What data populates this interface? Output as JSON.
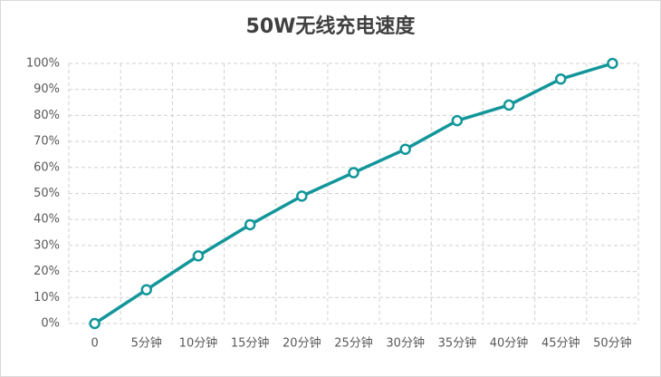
{
  "chart_data": {
    "type": "line",
    "title": "50W无线充电速度",
    "categories": [
      "0",
      "5分钟",
      "10分钟",
      "15分钟",
      "20分钟",
      "25分钟",
      "30分钟",
      "35分钟",
      "40分钟",
      "45分钟",
      "50分钟"
    ],
    "values": [
      0,
      13,
      26,
      38,
      49,
      58,
      67,
      78,
      84,
      94,
      100
    ],
    "color": "#12969a",
    "ylim": [
      0,
      100
    ],
    "yticks": [
      {
        "value": 0,
        "label": "0%"
      },
      {
        "value": 10,
        "label": "10%"
      },
      {
        "value": 20,
        "label": "20%"
      },
      {
        "value": 30,
        "label": "30%"
      },
      {
        "value": 40,
        "label": "40%"
      },
      {
        "value": 50,
        "label": "50%"
      },
      {
        "value": 60,
        "label": "60%"
      },
      {
        "value": 70,
        "label": "70%"
      },
      {
        "value": 80,
        "label": "80%"
      },
      {
        "value": 90,
        "label": "90%"
      },
      {
        "value": 100,
        "label": "100%"
      }
    ],
    "grid": true
  }
}
